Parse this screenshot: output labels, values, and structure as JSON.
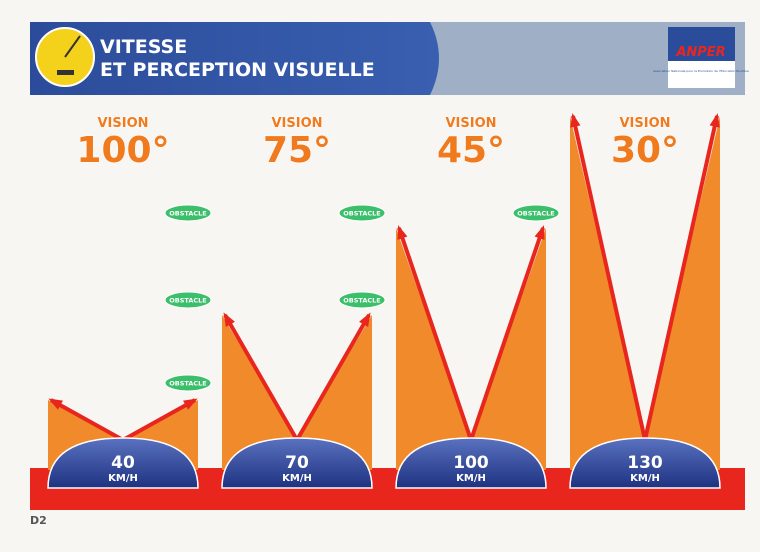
{
  "header": {
    "title_line1": "VITESSE",
    "title_line2": "ET PERCEPTION VISUELLE"
  },
  "logo": {
    "name": "ANPER",
    "tagline": "Association Nationale pour la Promotion de l'Education Routière"
  },
  "panels": [
    {
      "vision": "VISION",
      "angle": "100°",
      "speed": "40",
      "unit": "KM/H",
      "obstacles": [
        "OBSTACLE",
        "OBSTACLE",
        "OBSTACLE"
      ]
    },
    {
      "vision": "VISION",
      "angle": "75°",
      "speed": "70",
      "unit": "KM/H",
      "obstacles": [
        "OBSTACLE",
        "OBSTACLE"
      ]
    },
    {
      "vision": "VISION",
      "angle": "45°",
      "speed": "100",
      "unit": "KM/H",
      "obstacles": [
        "OBSTACLE"
      ]
    },
    {
      "vision": "VISION",
      "angle": "30°",
      "speed": "130",
      "unit": "KM/H",
      "obstacles": []
    }
  ],
  "footer": {
    "code": "D2"
  }
}
